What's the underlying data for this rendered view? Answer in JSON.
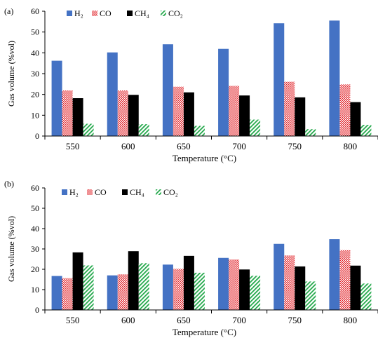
{
  "chart_data": [
    {
      "type": "bar",
      "panel_label": "(a)",
      "categories": [
        "550",
        "600",
        "650",
        "700",
        "750",
        "800"
      ],
      "series": [
        {
          "name": "H₂",
          "color": "#4472C4",
          "pattern": "solid",
          "values": [
            36.2,
            40.2,
            44.1,
            41.9,
            54.2,
            55.5
          ]
        },
        {
          "name": "CO",
          "color": "#E0242B",
          "pattern": "checker",
          "values": [
            21.9,
            21.9,
            23.7,
            24.1,
            26.1,
            24.8
          ]
        },
        {
          "name": "CH₄",
          "color": "#000000",
          "pattern": "solid",
          "values": [
            18.2,
            19.8,
            21.0,
            19.5,
            18.6,
            16.3
          ]
        },
        {
          "name": "CO₂",
          "color": "#22A84A",
          "pattern": "diagonal",
          "values": [
            5.9,
            5.7,
            4.9,
            7.9,
            3.3,
            5.4
          ]
        }
      ],
      "xlabel": "Temperature  (°C)",
      "ylabel": "Gas volume  (%vol)",
      "ylim": [
        0,
        60
      ],
      "yticks": [
        "0",
        "10",
        "20",
        "30",
        "40",
        "50",
        "60"
      ],
      "grid": false,
      "legend_position": "top-left"
    },
    {
      "type": "bar",
      "panel_label": "(b)",
      "categories": [
        "550",
        "600",
        "650",
        "700",
        "750",
        "800"
      ],
      "series": [
        {
          "name": "H₂",
          "color": "#4472C4",
          "pattern": "solid",
          "values": [
            16.7,
            17.0,
            22.3,
            25.6,
            32.5,
            34.8
          ]
        },
        {
          "name": "CO",
          "color": "#E0242B",
          "pattern": "checker",
          "values": [
            15.6,
            17.5,
            20.2,
            24.8,
            26.8,
            29.4
          ]
        },
        {
          "name": "CH₄",
          "color": "#000000",
          "pattern": "solid",
          "values": [
            28.3,
            28.9,
            26.6,
            19.9,
            21.4,
            21.8
          ]
        },
        {
          "name": "CO₂",
          "color": "#22A84A",
          "pattern": "diagonal",
          "values": [
            21.9,
            23.0,
            18.3,
            16.8,
            14.0,
            13.0
          ]
        }
      ],
      "xlabel": "Temperature  (°C)",
      "ylabel": "Gas volume  (%vol)",
      "ylim": [
        0,
        60
      ],
      "yticks": [
        "0",
        "10",
        "20",
        "30",
        "40",
        "50",
        "60"
      ],
      "grid": false,
      "legend_position": "top-left"
    }
  ]
}
